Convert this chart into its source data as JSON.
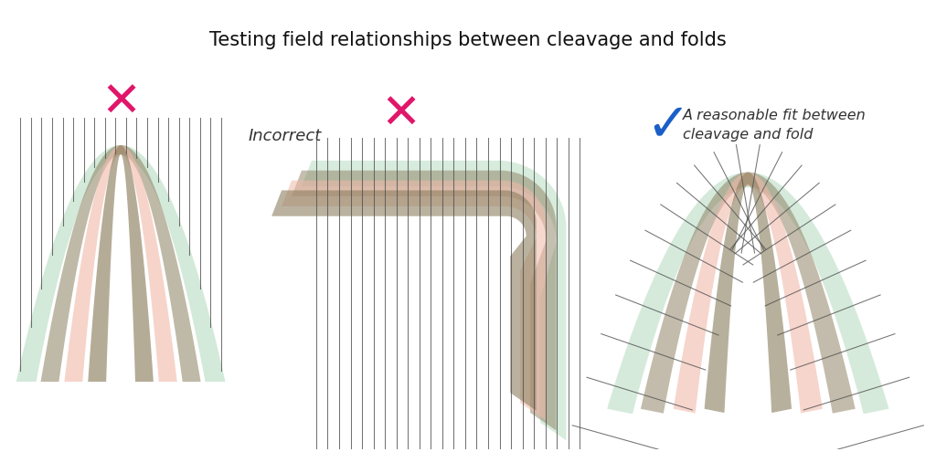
{
  "title": "Testing field relationships between cleavage and folds",
  "title_fontsize": 15,
  "bg_color": "#ffffff",
  "label_incorrect": "Incorrect",
  "label_correct": "A reasonable fit between\ncleavage and fold",
  "color_green": "#a8d5b5",
  "color_salmon": "#f0b8a8",
  "color_khaki": "#8c8060",
  "color_lines": "#505050",
  "color_x": "#e0166a",
  "color_check": "#1a5fc8"
}
